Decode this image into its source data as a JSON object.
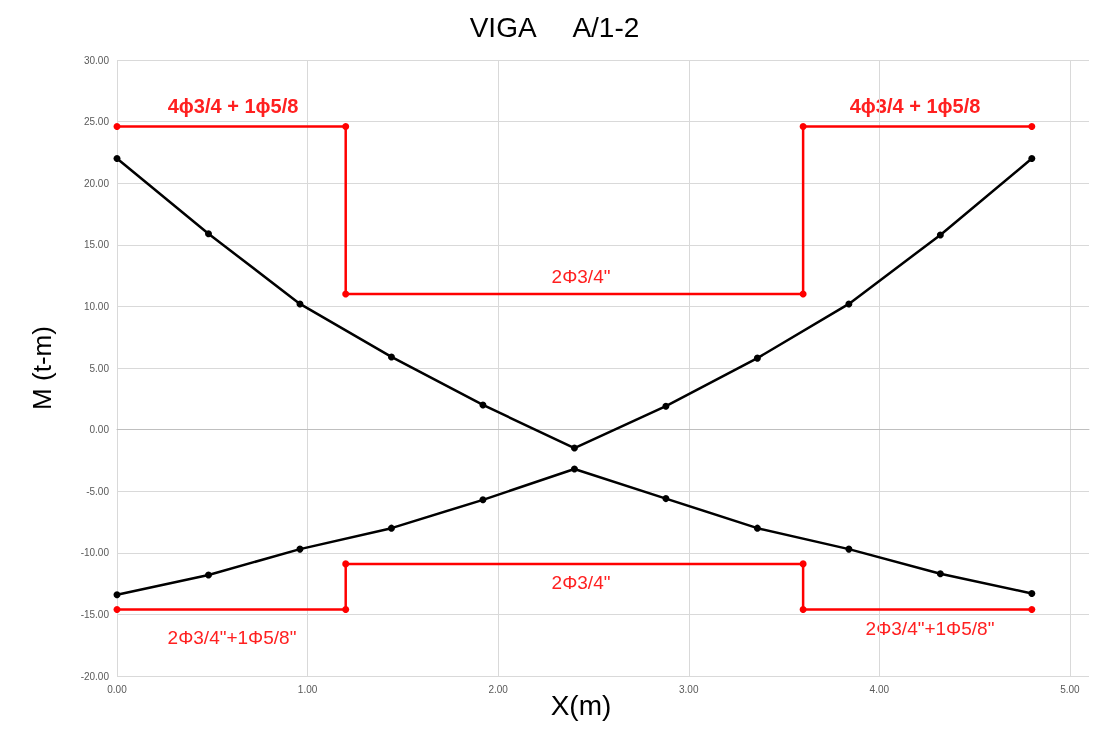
{
  "chart_data": {
    "type": "line",
    "title": "VIGA     A/1-2",
    "xlabel": "X(m)",
    "ylabel": "M (t-m)",
    "xlim": [
      0,
      5.1
    ],
    "xticks": [
      {
        "value": 0,
        "label": "0.00"
      },
      {
        "value": 1,
        "label": "1.00"
      },
      {
        "value": 2,
        "label": "2.00"
      },
      {
        "value": 3,
        "label": "3.00"
      },
      {
        "value": 4,
        "label": "4.00"
      },
      {
        "value": 5,
        "label": "5.00"
      }
    ],
    "ylim": [
      -20,
      30
    ],
    "yticks": [
      {
        "value": -20,
        "label": "-20.00"
      },
      {
        "value": -15,
        "label": "-15.00"
      },
      {
        "value": -10,
        "label": "-10.00"
      },
      {
        "value": -5,
        "label": "-5.00"
      },
      {
        "value": 0,
        "label": "0.00"
      },
      {
        "value": 5,
        "label": "5.00"
      },
      {
        "value": 10,
        "label": "10.00"
      },
      {
        "value": 15,
        "label": "15.00"
      },
      {
        "value": 20,
        "label": "20.00"
      },
      {
        "value": 25,
        "label": "25.00"
      },
      {
        "value": 30,
        "label": "30.00"
      }
    ],
    "grid": true,
    "marker": "circle",
    "line_style": "solid",
    "series": [
      {
        "color": "#000000",
        "x": [
          0,
          0.48,
          0.96,
          1.44,
          1.92,
          2.4,
          2.88,
          3.36,
          3.84,
          4.32,
          4.8
        ],
        "values": [
          22.0,
          15.9,
          10.2,
          5.9,
          2.0,
          -1.5,
          1.9,
          5.8,
          10.2,
          15.8,
          22.0
        ]
      },
      {
        "color": "#000000",
        "x": [
          0,
          0.48,
          0.96,
          1.44,
          1.92,
          2.4,
          2.88,
          3.36,
          3.84,
          4.32,
          4.8
        ],
        "values": [
          -13.4,
          -11.8,
          -9.7,
          -8.0,
          -5.7,
          -3.2,
          -5.6,
          -8.0,
          -9.7,
          -11.7,
          -13.3
        ]
      },
      {
        "color": "#ff0000",
        "x": [
          0,
          1.2,
          1.2,
          3.6,
          3.6,
          4.8
        ],
        "values": [
          24.6,
          24.6,
          11.0,
          11.0,
          24.6,
          24.6
        ]
      },
      {
        "color": "#ff0000",
        "x": [
          0,
          1.2,
          1.2,
          3.6,
          3.6,
          4.8
        ],
        "values": [
          -14.6,
          -14.6,
          -10.9,
          -10.9,
          -14.6,
          -14.6
        ]
      }
    ],
    "annotations": [
      "4ϕ3/4 + 1ϕ5/8",
      "4ϕ3/4 + 1ϕ5/8",
      "2Φ3/4\"",
      "2Φ3/4\"",
      "2Φ3/4\"+1Φ5/8\"",
      "2Φ3/4\"+1Φ5/8\""
    ]
  }
}
